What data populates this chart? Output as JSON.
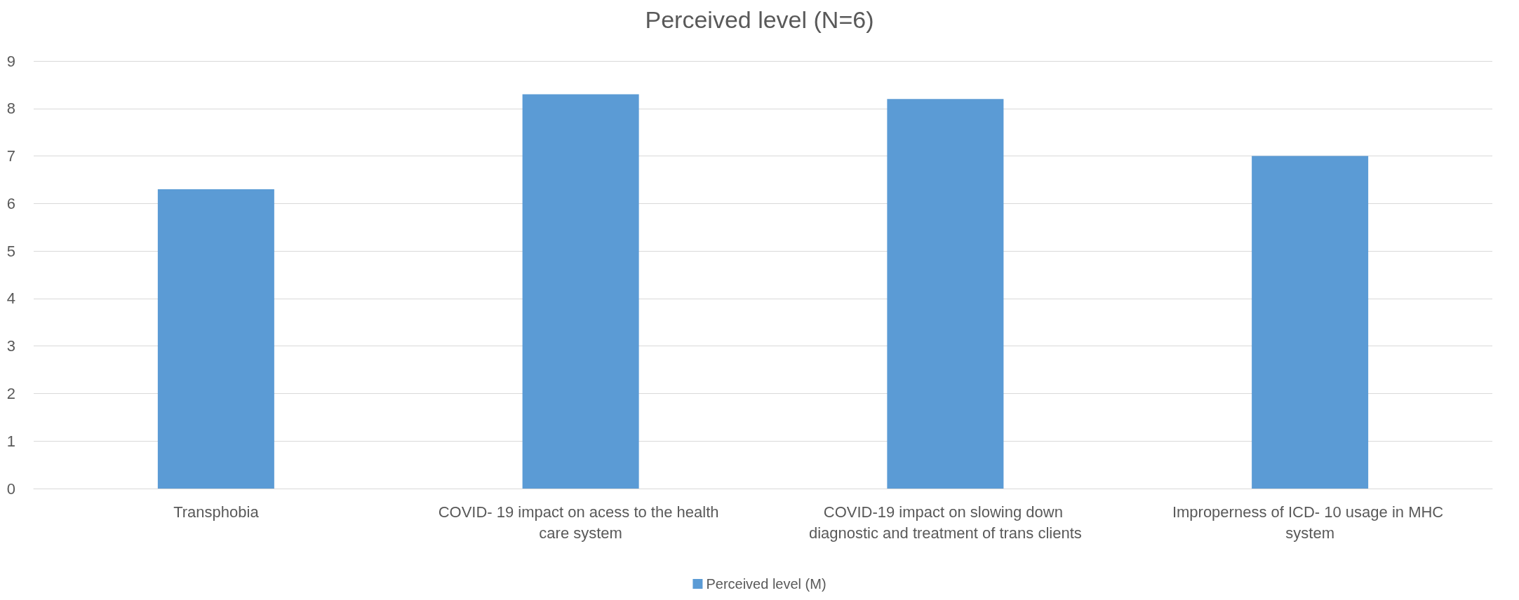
{
  "chart_data": {
    "type": "bar",
    "title": "Perceived level (N=6)",
    "categories": [
      "Transphobia",
      "COVID- 19 impact on acess to the health care system",
      "COVID-19 impact on slowing down diagnostic and treatment of trans clients",
      "Improperness of ICD- 10 usage in MHC system"
    ],
    "series": [
      {
        "name": "Perceived level (M)",
        "color": "#5b9bd5",
        "values": [
          6.3,
          8.3,
          8.2,
          7.0
        ]
      }
    ],
    "ylim": [
      0,
      9
    ],
    "yticks": [
      0,
      1,
      2,
      3,
      4,
      5,
      6,
      7,
      8,
      9
    ],
    "grid": "y",
    "legend": "bottom"
  }
}
